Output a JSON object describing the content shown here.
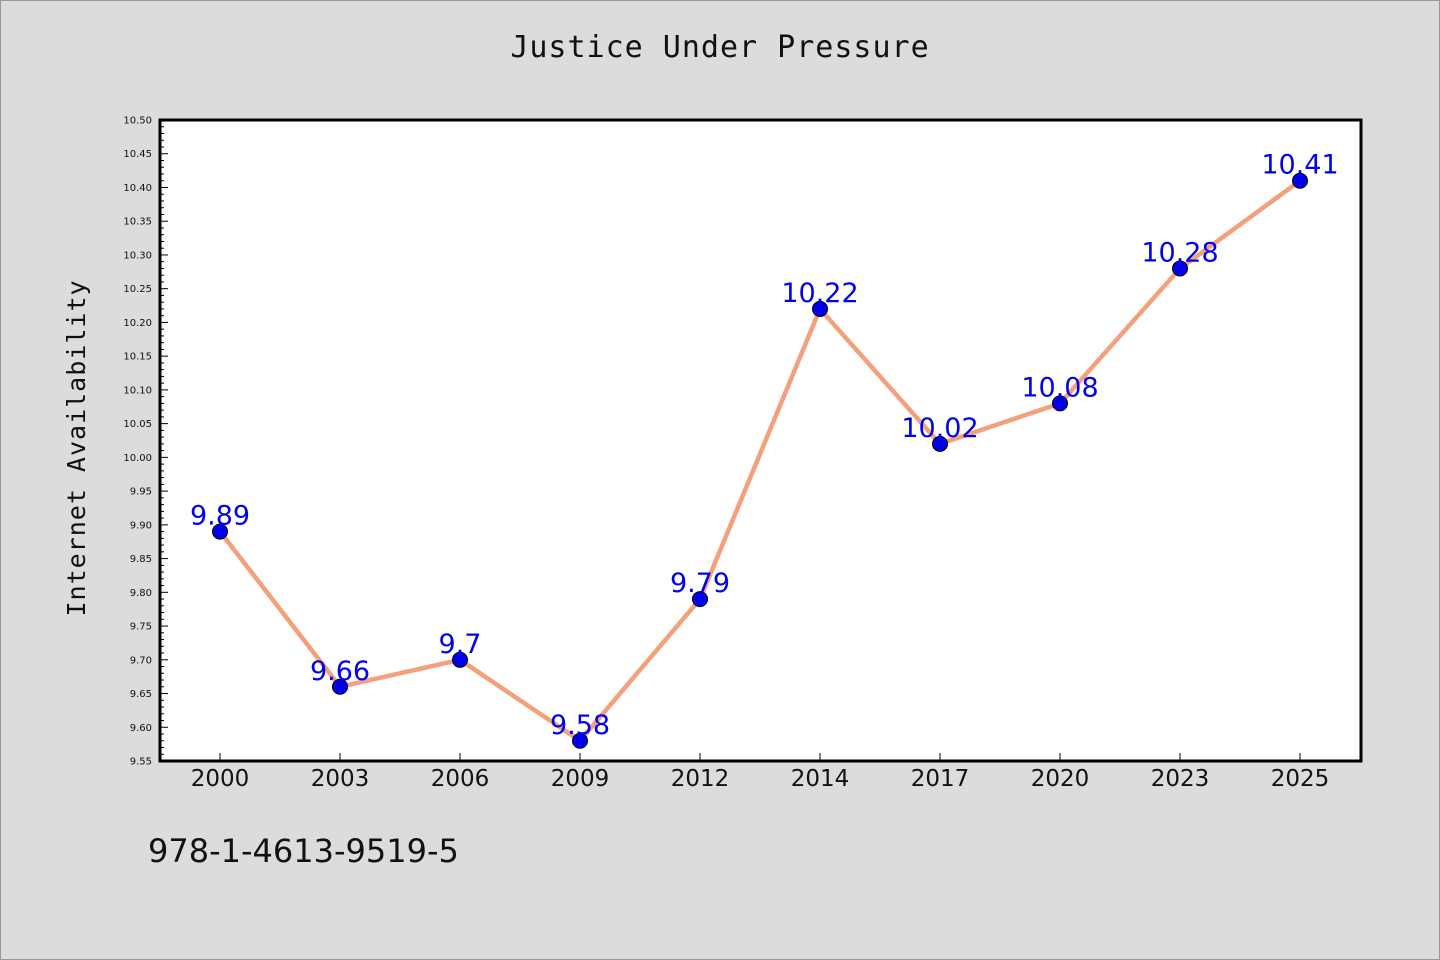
{
  "chart_data": {
    "type": "line",
    "title": "Justice Under Pressure",
    "xlabel": "",
    "ylabel": "Internet Availability",
    "categories": [
      "2000",
      "2003",
      "2006",
      "2009",
      "2012",
      "2014",
      "2017",
      "2020",
      "2023",
      "2025"
    ],
    "values": [
      9.89,
      9.66,
      9.7,
      9.58,
      9.79,
      10.22,
      10.02,
      10.08,
      10.28,
      10.41
    ],
    "data_labels": [
      "9.89",
      "9.66",
      "9.7",
      "9.58",
      "9.79",
      "10.22",
      "10.02",
      "10.08",
      "10.28",
      "10.41"
    ],
    "ylim": [
      9.55,
      10.5
    ],
    "yticks": [
      "9.55",
      "9.60",
      "9.65",
      "9.70",
      "9.75",
      "9.80",
      "9.85",
      "9.90",
      "9.95",
      "10.00",
      "10.05",
      "10.10",
      "10.15",
      "10.20",
      "10.25",
      "10.30",
      "10.35",
      "10.40",
      "10.45",
      "10.50"
    ],
    "ytick_values": [
      9.55,
      9.6,
      9.65,
      9.7,
      9.75,
      9.8,
      9.85,
      9.9,
      9.95,
      10.0,
      10.05,
      10.1,
      10.15,
      10.2,
      10.25,
      10.3,
      10.35,
      10.4,
      10.45,
      10.5
    ],
    "grid": false,
    "legend": "none",
    "line_color": "#f4a07c",
    "marker_color": "#0000ee",
    "label_color": "#0000ee"
  },
  "footer": {
    "code": "978-1-4613-9519-5"
  }
}
